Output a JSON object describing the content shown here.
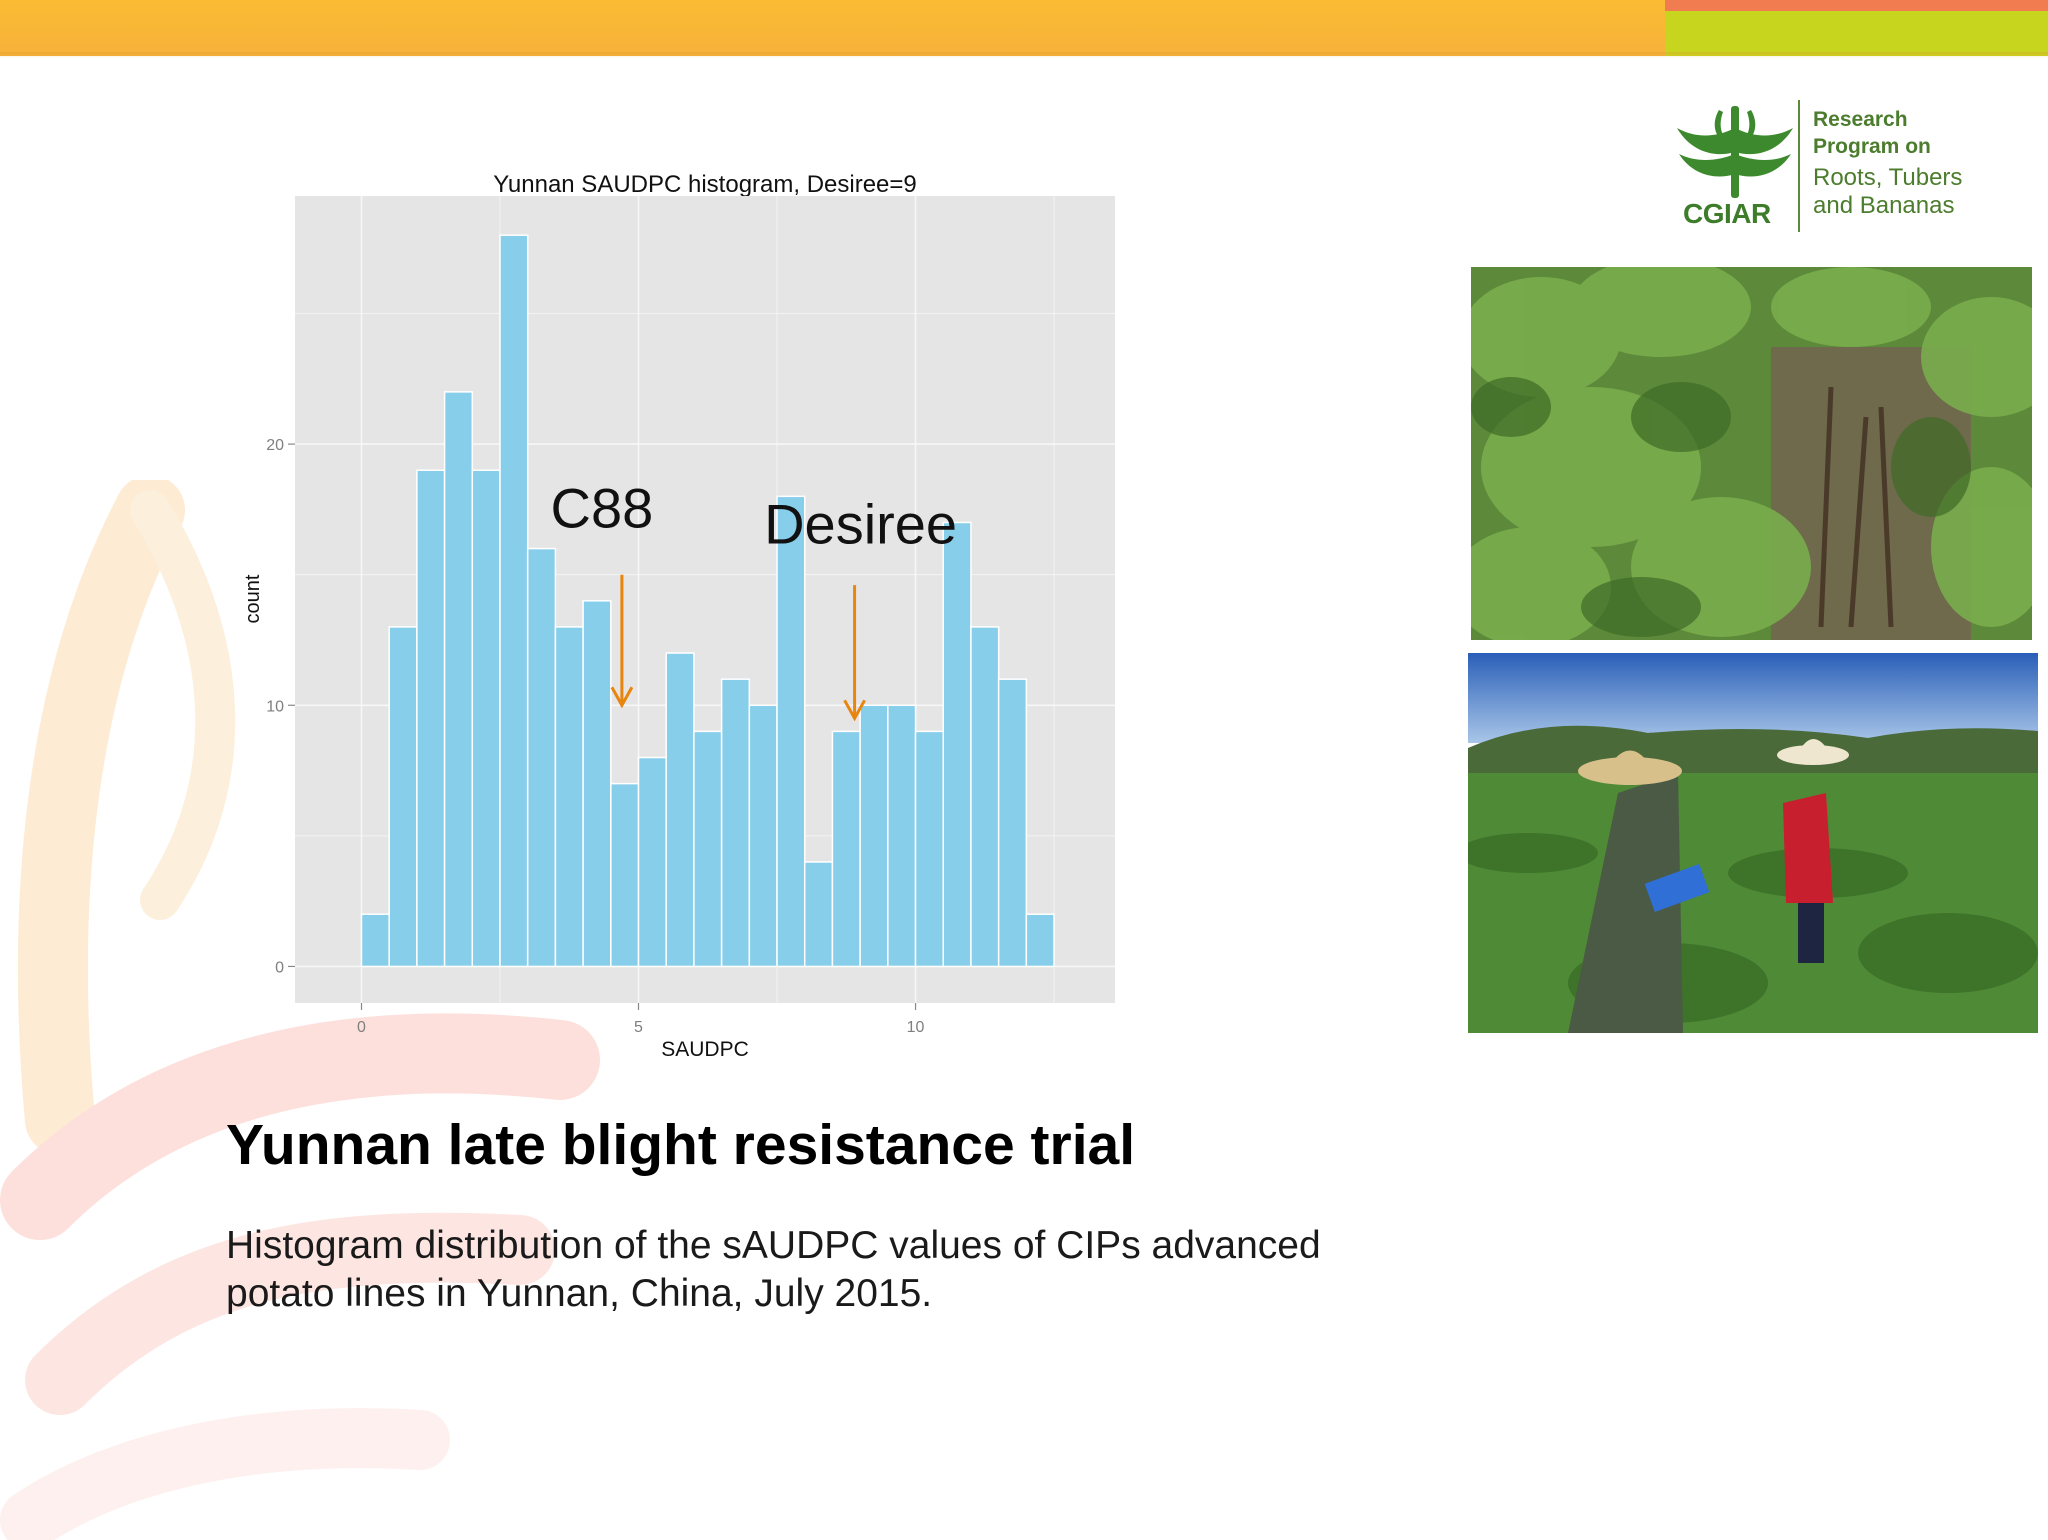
{
  "slide": {
    "title": "Yunnan late blight resistance trial",
    "body_line1": "Histogram distribution of the sAUDPC values of CIPs advanced",
    "body_line2": "potato lines in Yunnan, China, July 2015."
  },
  "logo": {
    "org": "CGIAR",
    "line1": "Research",
    "line2": "Program on",
    "line3": "Roots, Tubers",
    "line4": "and Bananas"
  },
  "colors": {
    "top_bar_yellow": "#fbbc33",
    "top_bar_orange": "#f07c4f",
    "top_bar_green": "#c8d51f",
    "bar_fill": "#87ceeb",
    "panel_bg": "#e5e5e5",
    "annotation_arrow": "#e8850f",
    "logo_green": "#4c7d2e"
  },
  "chart_data": {
    "type": "bar",
    "title": "Yunnan SAUDPC histogram, Desiree=9",
    "xlabel": "SAUDPC",
    "ylabel": "count",
    "xlim": [
      -1.2,
      13.6
    ],
    "ylim": [
      -1.4,
      29.5
    ],
    "xticks": [
      0,
      5,
      10
    ],
    "yticks": [
      0,
      10,
      20
    ],
    "bin_width": 0.5,
    "bins_start": [
      0,
      0.5,
      1,
      1.5,
      2,
      2.5,
      3,
      3.5,
      4,
      4.5,
      5,
      5.5,
      6,
      6.5,
      7,
      7.5,
      8,
      8.5,
      9,
      9.5,
      10,
      10.5,
      11,
      11.5,
      12
    ],
    "values": [
      2,
      13,
      19,
      22,
      19,
      28,
      16,
      13,
      14,
      7,
      8,
      12,
      9,
      11,
      10,
      18,
      4,
      9,
      10,
      10,
      9,
      17,
      13,
      11,
      2
    ],
    "grid": true,
    "annotations": [
      {
        "label": "C88",
        "x": 4.7,
        "arrow_to": 10
      },
      {
        "label": "Desiree",
        "x": 8.9,
        "arrow_to": 9.5
      }
    ]
  }
}
